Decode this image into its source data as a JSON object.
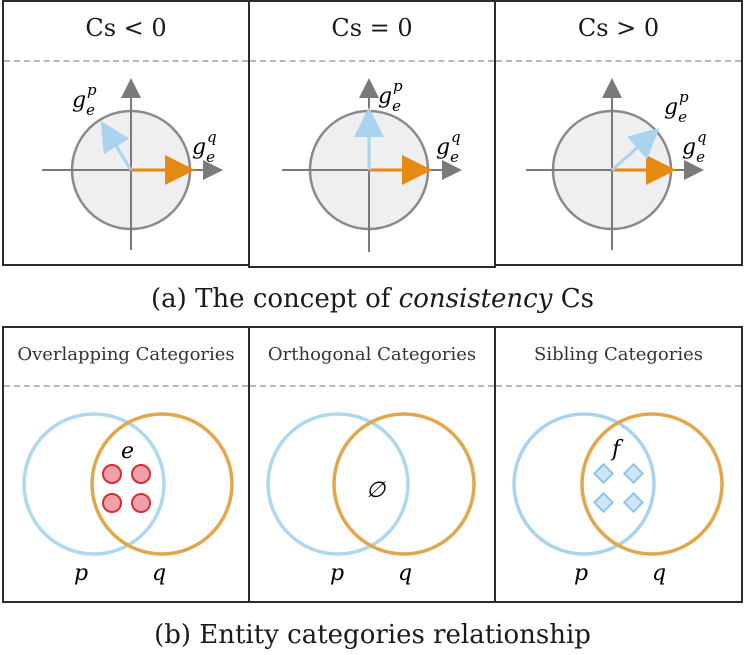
{
  "top_row": {
    "panels": [
      {
        "title": "Cs < 0",
        "vec_p": "g_e^p",
        "vec_q": "g_e^q"
      },
      {
        "title": "Cs = 0",
        "vec_p": "g_e^p",
        "vec_q": "g_e^q"
      },
      {
        "title": "Cs > 0",
        "vec_p": "g_e^p",
        "vec_q": "g_e^q"
      }
    ],
    "caption_prefix": "(a) The concept of ",
    "caption_italic": "consistency",
    "caption_suffix": " Cs"
  },
  "bottom_row": {
    "panels": [
      {
        "title": "Overlapping Categories",
        "set_p": "p",
        "set_q": "q",
        "inner_label": "e"
      },
      {
        "title": "Orthogonal Categories",
        "set_p": "p",
        "set_q": "q",
        "inner_label": "∅"
      },
      {
        "title": "Sibling Categories",
        "set_p": "p",
        "set_q": "q",
        "inner_label": "f"
      }
    ],
    "caption": "(b) Entity categories relationship"
  },
  "colors": {
    "axis": "#7a7a7a",
    "circle_fill": "#efeff1",
    "circle_stroke": "#8a8a8a",
    "vector_p": "#a9d3ee",
    "vector_q": "#e68a12",
    "set_p": "#aed8f0",
    "set_q": "#e2a64b",
    "dot_fill": "#f0a0a8",
    "dot_stroke": "#d0303a",
    "diamond_fill": "#cfe6f8",
    "diamond_stroke": "#8fc3e8"
  }
}
